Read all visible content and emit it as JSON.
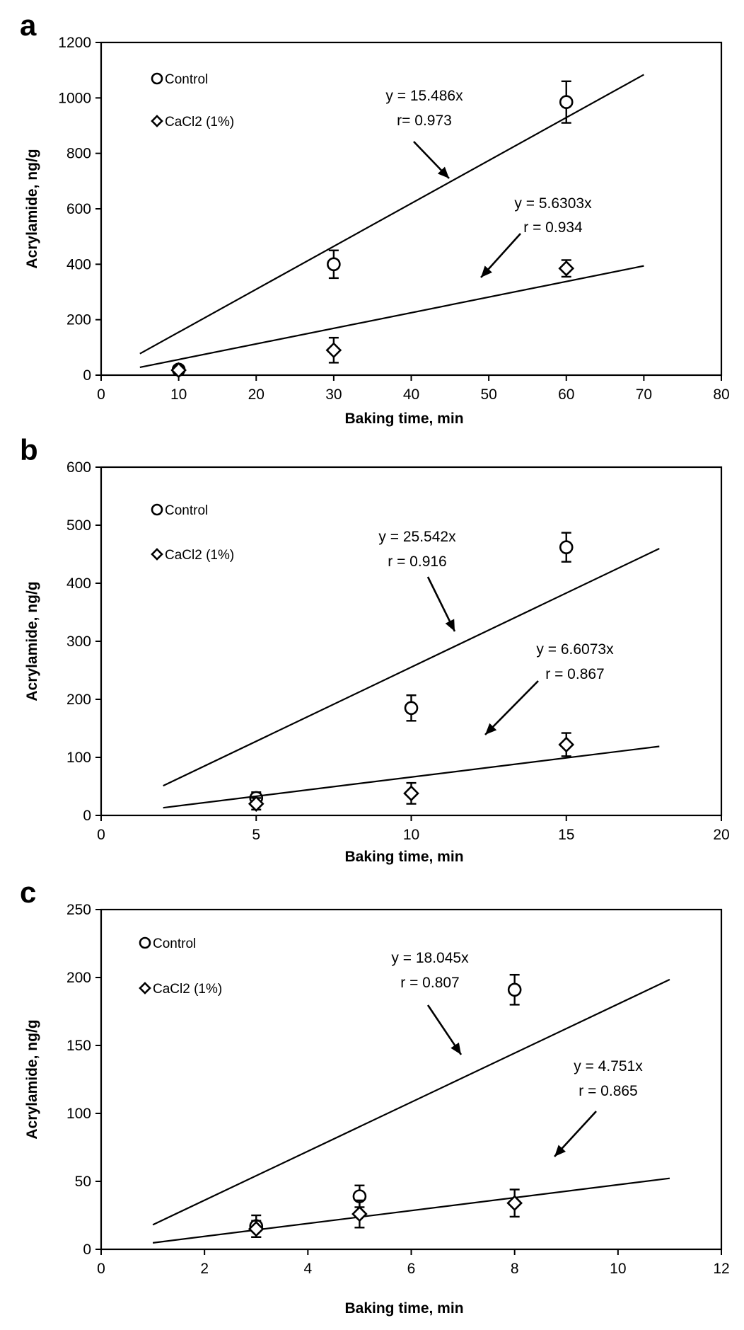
{
  "chart_data": [
    {
      "type": "scatter",
      "panel_label": "a",
      "xlabel": "Baking time, min",
      "ylabel": "Acrylamide, ng/g",
      "xlim": [
        0,
        80
      ],
      "ylim": [
        0,
        1200
      ],
      "xticks": [
        0,
        10,
        20,
        30,
        40,
        50,
        60,
        70,
        80
      ],
      "yticks": [
        0,
        200,
        400,
        600,
        800,
        1000,
        1200
      ],
      "legend_placement": "top-left",
      "series": [
        {
          "name": "Control",
          "marker": "circle",
          "points": [
            {
              "x": 10,
              "y": 20,
              "err": 15
            },
            {
              "x": 30,
              "y": 400,
              "err": 50
            },
            {
              "x": 60,
              "y": 985,
              "err": 75
            }
          ],
          "fit": {
            "slope": 15.486,
            "x_range": [
              5,
              70
            ],
            "equation": "y = 15.486x",
            "r_label": "r= 0.973"
          }
        },
        {
          "name": "CaCl2 (1%)",
          "marker": "diamond",
          "points": [
            {
              "x": 10,
              "y": 18,
              "err": 10
            },
            {
              "x": 30,
              "y": 90,
              "err": 45
            },
            {
              "x": 60,
              "y": 385,
              "err": 30
            }
          ],
          "fit": {
            "slope": 5.6303,
            "x_range": [
              5,
              70
            ],
            "equation": "y = 5.6303x",
            "r_label": "r = 0.934"
          }
        }
      ]
    },
    {
      "type": "scatter",
      "panel_label": "b",
      "xlabel": "Baking time, min",
      "ylabel": "Acrylamide, ng/g",
      "xlim": [
        0,
        20
      ],
      "ylim": [
        0,
        600
      ],
      "xticks": [
        0,
        5,
        10,
        15,
        20
      ],
      "yticks": [
        0,
        100,
        200,
        300,
        400,
        500,
        600
      ],
      "legend_placement": "top-left",
      "series": [
        {
          "name": "Control",
          "marker": "circle",
          "points": [
            {
              "x": 5,
              "y": 30,
              "err": 10
            },
            {
              "x": 10,
              "y": 185,
              "err": 22
            },
            {
              "x": 15,
              "y": 462,
              "err": 25
            }
          ],
          "fit": {
            "slope": 25.542,
            "x_range": [
              2,
              18
            ],
            "equation": "y = 25.542x",
            "r_label": "r = 0.916"
          }
        },
        {
          "name": "CaCl2 (1%)",
          "marker": "diamond",
          "points": [
            {
              "x": 5,
              "y": 20,
              "err": 10
            },
            {
              "x": 10,
              "y": 38,
              "err": 18
            },
            {
              "x": 15,
              "y": 122,
              "err": 20
            }
          ],
          "fit": {
            "slope": 6.6073,
            "x_range": [
              2,
              18
            ],
            "equation": "y = 6.6073x",
            "r_label": "r = 0.867"
          }
        }
      ]
    },
    {
      "type": "scatter",
      "panel_label": "c",
      "xlabel": "Baking time, min",
      "ylabel": "Acrylamide, ng/g",
      "xlim": [
        0,
        12
      ],
      "ylim": [
        0,
        250
      ],
      "xticks": [
        0,
        2,
        4,
        6,
        8,
        10,
        12
      ],
      "yticks": [
        0,
        50,
        100,
        150,
        200,
        250
      ],
      "legend_placement": "top-left",
      "series": [
        {
          "name": "Control",
          "marker": "circle",
          "points": [
            {
              "x": 3,
              "y": 17,
              "err": 8
            },
            {
              "x": 5,
              "y": 39,
              "err": 8
            },
            {
              "x": 8,
              "y": 191,
              "err": 11
            }
          ],
          "fit": {
            "slope": 18.045,
            "x_range": [
              1,
              11
            ],
            "equation": "y = 18.045x",
            "r_label": "r = 0.807"
          }
        },
        {
          "name": "CaCl2 (1%)",
          "marker": "diamond",
          "points": [
            {
              "x": 3,
              "y": 15,
              "err": 6
            },
            {
              "x": 5,
              "y": 26,
              "err": 10
            },
            {
              "x": 8,
              "y": 34,
              "err": 10
            }
          ],
          "fit": {
            "slope": 4.751,
            "x_range": [
              1,
              11
            ],
            "equation": "y = 4.751x",
            "r_label": "r = 0.865"
          }
        }
      ]
    }
  ]
}
